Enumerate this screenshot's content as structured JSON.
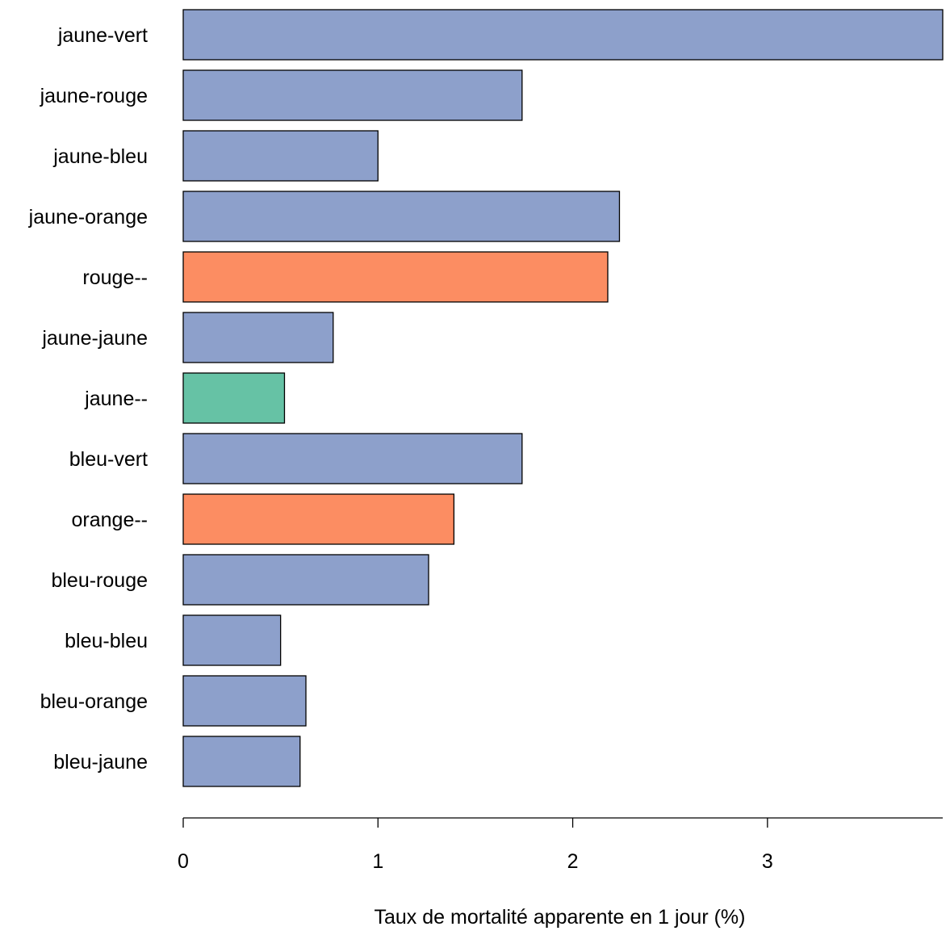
{
  "chart_data": {
    "type": "bar",
    "orientation": "horizontal",
    "title": "",
    "xlabel": "Taux de mortalité apparente en 1 jour (%)",
    "ylabel": "",
    "xlim": [
      0,
      3.9
    ],
    "xticks": [
      "0",
      "1",
      "2",
      "3"
    ],
    "grid": false,
    "legend": "none",
    "categories": [
      "jaune-vert",
      "jaune-rouge",
      "jaune-bleu",
      "jaune-orange",
      "rouge--",
      "jaune-jaune",
      "jaune--",
      "bleu-vert",
      "orange--",
      "bleu-rouge",
      "bleu-bleu",
      "bleu-orange",
      "bleu-jaune"
    ],
    "values": [
      3.9,
      1.74,
      1.0,
      2.24,
      2.18,
      0.77,
      0.52,
      1.74,
      1.39,
      1.26,
      0.5,
      0.63,
      0.6
    ],
    "colors": [
      "#8DA0CB",
      "#8DA0CB",
      "#8DA0CB",
      "#8DA0CB",
      "#FC8D62",
      "#8DA0CB",
      "#66C2A5",
      "#8DA0CB",
      "#FC8D62",
      "#8DA0CB",
      "#8DA0CB",
      "#8DA0CB",
      "#8DA0CB"
    ]
  }
}
